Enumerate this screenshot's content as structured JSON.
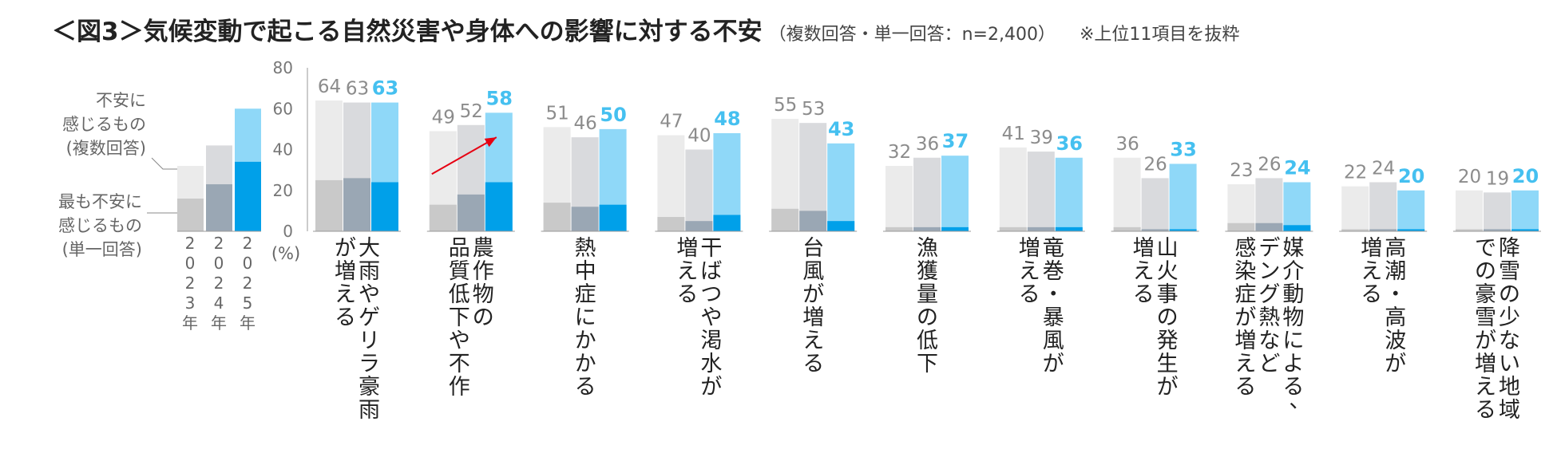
{
  "title": "＜図3＞気候変動で起こる自然災害や身体への影響に対する不安",
  "subtitle": "（複数回答・単一回答：n=2,400）",
  "note": "※上位11項目を抜粋",
  "chart_data": {
    "type": "bar",
    "unit_label": "(%)",
    "ylim": [
      0,
      80
    ],
    "yticks": [
      0,
      20,
      40,
      60,
      80
    ],
    "years": [
      "2023年",
      "2024年",
      "2025年"
    ],
    "legend": {
      "multiple_label_lines": [
        "不安に",
        "感じるもの",
        "(複数回答)"
      ],
      "single_label_lines": [
        "最も不安に",
        "感じるもの",
        "(単一回答)"
      ],
      "sample_multiple": [
        32,
        42,
        60
      ],
      "sample_single": [
        16,
        23,
        34
      ]
    },
    "series": [
      {
        "name": "不安に感じるもの(複数回答)",
        "type": "multiple"
      },
      {
        "name": "最も不安に感じるもの(単一回答)",
        "type": "single"
      }
    ],
    "categories": [
      {
        "label_cols": [
          "大雨やゲリラ豪雨",
          "が増える"
        ],
        "multiple": [
          64,
          63,
          63
        ],
        "single": [
          25,
          26,
          24
        ]
      },
      {
        "label_cols": [
          "農作物の",
          "品質低下や不作"
        ],
        "multiple": [
          49,
          52,
          58
        ],
        "single": [
          13,
          18,
          24
        ],
        "highlight_arrow": true
      },
      {
        "label_cols": [
          "熱中症にかかる"
        ],
        "multiple": [
          51,
          46,
          50
        ],
        "single": [
          14,
          12,
          13
        ]
      },
      {
        "label_cols": [
          "干ばつや渇水が",
          "増える"
        ],
        "multiple": [
          47,
          40,
          48
        ],
        "single": [
          7,
          5,
          8
        ]
      },
      {
        "label_cols": [
          "台風が増える"
        ],
        "multiple": [
          55,
          53,
          43
        ],
        "single": [
          11,
          10,
          5
        ]
      },
      {
        "label_cols": [
          "漁獲量の低下"
        ],
        "multiple": [
          32,
          36,
          37
        ],
        "single": [
          2,
          2,
          2
        ]
      },
      {
        "label_cols": [
          "竜巻・暴風が",
          "増える"
        ],
        "multiple": [
          41,
          39,
          36
        ],
        "single": [
          2,
          2,
          2
        ]
      },
      {
        "label_cols": [
          "山火事の発生が",
          "増える"
        ],
        "multiple": [
          36,
          26,
          33
        ],
        "single": [
          2,
          1,
          1
        ]
      },
      {
        "label_cols": [
          "媒介動物による、",
          "デング熱など",
          "感染症が増える"
        ],
        "multiple": [
          23,
          26,
          24
        ],
        "single": [
          4,
          4,
          3
        ]
      },
      {
        "label_cols": [
          "高潮・高波が",
          "増える"
        ],
        "multiple": [
          22,
          24,
          20
        ],
        "single": [
          1,
          1,
          1
        ]
      },
      {
        "label_cols": [
          "降雪の少ない地域",
          "での豪雪が増える"
        ],
        "multiple": [
          20,
          19,
          20
        ],
        "single": [
          1,
          1,
          1
        ]
      }
    ],
    "colors": {
      "multiple": [
        "#ebebeb",
        "#d9dadd",
        "#8fd8f8"
      ],
      "single": [
        "#c9c9c9",
        "#9aa7b4",
        "#00a0e9"
      ],
      "value_labels": [
        "#8c8c8c",
        "#8c8c8c",
        "#45c0f0"
      ],
      "axis": "#999999",
      "arrow": "#e60012"
    },
    "grid": false
  }
}
